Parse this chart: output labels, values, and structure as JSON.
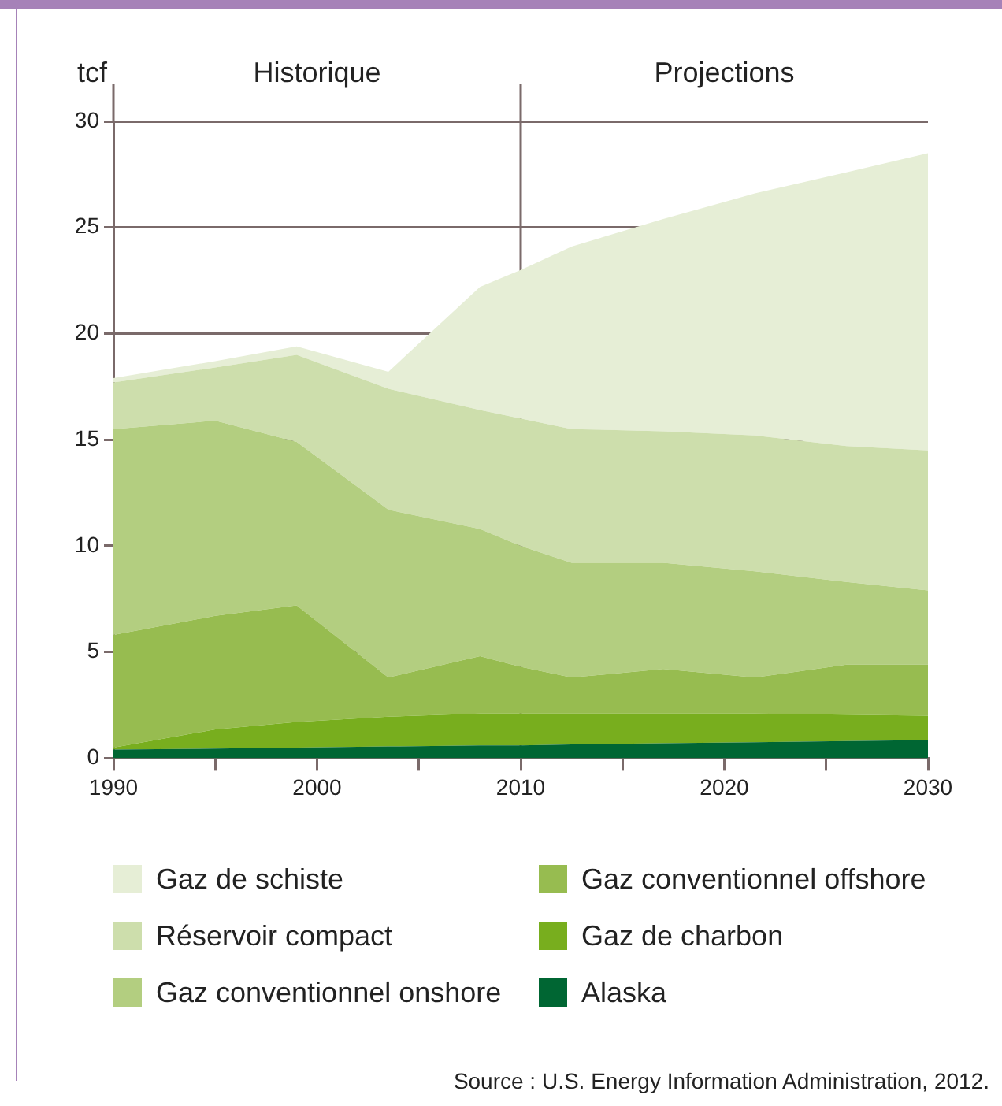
{
  "chart_data": {
    "type": "area",
    "stacked": true,
    "ylabel": "tcf",
    "x": [
      1990,
      1995,
      1999,
      2003.5,
      2008,
      2010,
      2012.5,
      2017,
      2021.5,
      2026,
      2030
    ],
    "series": [
      {
        "name": "Alaska",
        "color": "#006633",
        "values": [
          0.4,
          0.45,
          0.5,
          0.55,
          0.6,
          0.6,
          0.65,
          0.7,
          0.75,
          0.8,
          0.85
        ]
      },
      {
        "name": "Gaz de charbon",
        "color": "#78ae1e",
        "values": [
          0.1,
          0.9,
          1.2,
          1.4,
          1.5,
          1.5,
          1.45,
          1.4,
          1.35,
          1.25,
          1.15
        ]
      },
      {
        "name": "Gaz conventionnel offshore",
        "color": "#97bc50",
        "values": [
          5.3,
          5.35,
          5.5,
          1.85,
          2.7,
          2.2,
          1.7,
          2.1,
          1.7,
          2.35,
          2.4
        ]
      },
      {
        "name": "Gaz conventionnel onshore",
        "color": "#b3ce80",
        "values": [
          9.7,
          9.2,
          7.7,
          7.9,
          6.0,
          5.7,
          5.4,
          5.0,
          5.0,
          3.9,
          3.5
        ]
      },
      {
        "name": "Réservoir compact",
        "color": "#cddeac",
        "values": [
          2.2,
          2.5,
          4.1,
          5.7,
          5.6,
          6.0,
          6.3,
          6.2,
          6.4,
          6.4,
          6.6
        ]
      },
      {
        "name": "Gaz de schiste",
        "color": "#e6eed6",
        "values": [
          0.2,
          0.3,
          0.4,
          0.8,
          5.8,
          7.0,
          8.6,
          10.0,
          11.4,
          12.9,
          14.0
        ]
      }
    ],
    "xlim": [
      1990,
      2030
    ],
    "xticks": [
      1990,
      {
        "value": 1995,
        "label": null
      },
      2000,
      {
        "value": 2005,
        "label": null
      },
      2010,
      {
        "value": 2015,
        "label": null
      },
      2020,
      {
        "value": 2025,
        "label": null
      },
      2030
    ],
    "ylim": [
      0,
      30
    ],
    "yticks": [
      0,
      5,
      10,
      15,
      20,
      25,
      30
    ],
    "grid": "y",
    "legend": "bottom",
    "ref_lines": [
      {
        "axis": "x",
        "value": 2010,
        "color": "#7a6a6a"
      }
    ],
    "annotations": [
      "Historique",
      "Projections",
      "Source : U.S. Energy Information Administration, 2012."
    ]
  }
}
